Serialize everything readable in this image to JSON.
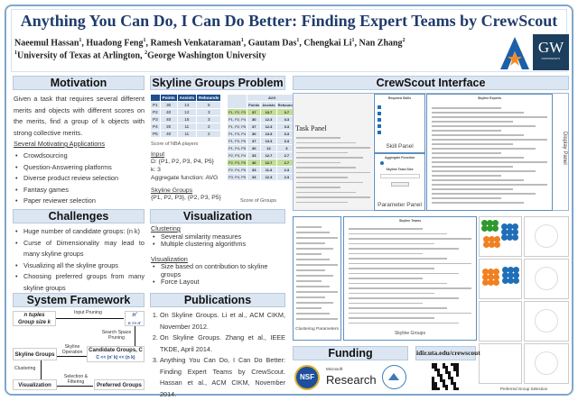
{
  "header": {
    "title": "Anything You Can Do, I Can Do Better: Finding Expert Teams by CrewScout",
    "authors": [
      {
        "name": "Naeemul Hassan",
        "aff": "1"
      },
      {
        "name": "Huadong Feng",
        "aff": "1"
      },
      {
        "name": "Ramesh Venkataraman",
        "aff": "1"
      },
      {
        "name": "Gautam Das",
        "aff": "1"
      },
      {
        "name": "Chengkai Li",
        "aff": "1"
      },
      {
        "name": "Nan Zhang",
        "aff": "2"
      }
    ],
    "affiliations": [
      {
        "num": "1",
        "name": "University of Texas at Arlington, "
      },
      {
        "num": "2",
        "name": "George Washington University"
      }
    ],
    "logos": {
      "uta": "A",
      "gw": "GW",
      "gw_sub": "UNIVERSITY"
    },
    "colors": {
      "title": "#1f3b6b",
      "section": "#dce6f2",
      "frame": "#7fa7cc"
    }
  },
  "motivation": {
    "title": "Motivation",
    "text": "Given a task that requires several different merits and objects with different scores on the merits, find a group of k objects with strong collective merits.",
    "apps_title": "Several Motivating Applications",
    "apps": [
      "Crowdsourcing",
      "Question-Answering platforms",
      "Diverse product review selection",
      "Fantasy games",
      "Paper reviewer selection"
    ]
  },
  "challenges": {
    "title": "Challenges",
    "items": [
      "Huge number of candidate groups: (n k)",
      "Curse of Dimensionality may lead to many skyline groups",
      "Visualizing all the skyline groups",
      "Choosing preferred groups from many skyline groups"
    ]
  },
  "framework": {
    "title": "System Framework",
    "n_tuples": "n tuples",
    "group_size": "Group size k",
    "n_prime": "n'",
    "n_gg": "n >> n'",
    "input_pruning": "Input Pruning",
    "search_space": "Search Space Pruning",
    "candidate": "Candidate Groups, C",
    "candidate_rel": "C << (n' k) << (n k)",
    "skyline_op": "Skyline Operation",
    "skyline_groups": "Skyline Groups",
    "clustering": "Clustering",
    "visualization": "Visualization",
    "selection": "Selection & Filtering",
    "preferred": "Preferred Groups"
  },
  "skyline_problem": {
    "title": "Skyline Groups Problem",
    "players_table": {
      "columns": [
        "",
        "Points",
        "Assists",
        "Rebounds"
      ],
      "rows": [
        [
          "P1",
          "30",
          "14",
          "5"
        ],
        [
          "P2",
          "40",
          "12",
          "3"
        ],
        [
          "P3",
          "40",
          "15",
          "3"
        ],
        [
          "P4",
          "20",
          "11",
          "2"
        ],
        [
          "P5",
          "40",
          "11",
          "2"
        ]
      ],
      "caption": "Score of NBA players"
    },
    "groups_table": {
      "agg": "AVG",
      "columns": [
        "Points",
        "Assists",
        "Rebounds"
      ],
      "rows": [
        {
          "g": "P1, P2, P3",
          "v": [
            "37",
            "13.7",
            "3.7"
          ],
          "skyline": true
        },
        {
          "g": "P1, P2, P4",
          "v": [
            "30",
            "12.3",
            "3.3"
          ],
          "skyline": false
        },
        {
          "g": "P1, P2, P5",
          "v": [
            "37",
            "12.3",
            "3.3"
          ],
          "skyline": false
        },
        {
          "g": "P1, P3, P4",
          "v": [
            "30",
            "13.3",
            "3.3"
          ],
          "skyline": false
        },
        {
          "g": "P1, P3, P5",
          "v": [
            "37",
            "13.3",
            "3.3"
          ],
          "skyline": false
        },
        {
          "g": "P1, P4, P5",
          "v": [
            "30",
            "12",
            "3"
          ],
          "skyline": false
        },
        {
          "g": "P2, P3, P4",
          "v": [
            "33",
            "12.7",
            "2.7"
          ],
          "skyline": false
        },
        {
          "g": "P2, P3, P5",
          "v": [
            "40",
            "12.7",
            "2.7"
          ],
          "skyline": true
        },
        {
          "g": "P2, P4, P5",
          "v": [
            "33",
            "11.3",
            "2.3"
          ],
          "skyline": false
        },
        {
          "g": "P3, P4, P5",
          "v": [
            "33",
            "12.3",
            "2.3"
          ],
          "skyline": false
        }
      ],
      "caption": "Score of Groups"
    },
    "input_title": "Input",
    "input_lines": [
      "D: {P1, P2, P3, P4, P5}",
      "k: 3",
      "Aggregate function: AVG"
    ],
    "skyline_title": "Skyline Groups",
    "skyline_value": "{P1, P2, P3}, {P2, P3, P5}"
  },
  "visualization": {
    "title": "Visualization",
    "clustering_title": "Clustering",
    "clustering_items": [
      "Several similarity measures",
      "Multiple clustering algorithms"
    ],
    "vis_title": "Visualization",
    "vis_items": [
      "Size based on contribution to skyline groups",
      "Force Layout"
    ]
  },
  "publications": {
    "title": "Publications",
    "items": [
      "On Skyline Groups. Li et al., ACM CIKM, November 2012.",
      "On Skyline Groups. Zhang et al., IEEE TKDE, April 2014.",
      "Anything You Can Do, I Can Do Better: Finding Expert Teams by CrewScout. Hassan et al., ACM CIKM, November 2014."
    ]
  },
  "interface": {
    "title": "CrewScout Interface",
    "task_panel": "Task Panel",
    "skill_panel": "Skill Panel",
    "parameter_panel": "Parameter Panel",
    "display_panel": "Display Panel",
    "required_skills": "Required Skills",
    "skyline_experts": "Skyline Experts",
    "aggregate_function": "Aggregate Function",
    "team_size": "Skyline Team Size",
    "skyline_teams": "Skyline Teams",
    "clustering_parameters": "Clustering Parameters",
    "skyline_groups": "Skyline Groups",
    "preferred_selection": "Preferred Group Selection",
    "cluster_colors": [
      "#2e9a2e",
      "#1f6fb8",
      "#f08020"
    ]
  },
  "funding": {
    "title": "Funding",
    "url": "idir.uta.edu/crewscout",
    "sponsors": [
      "NSF",
      "Microsoft",
      "Research"
    ]
  }
}
